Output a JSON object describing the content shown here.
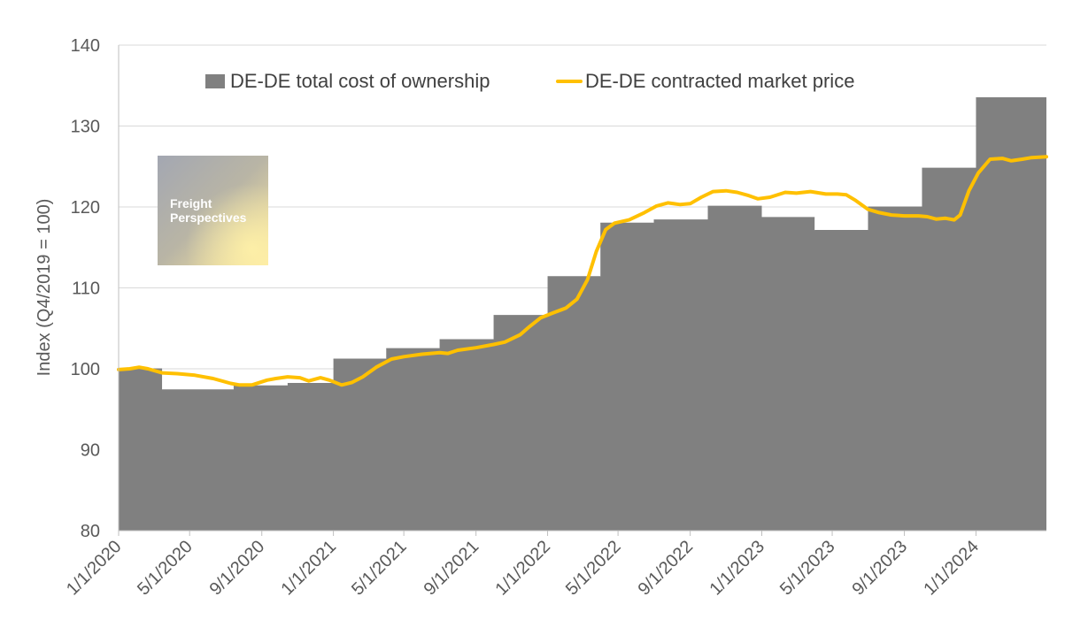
{
  "chart_data": {
    "type": "area",
    "title": "",
    "xlabel": "",
    "ylabel": "Index (Q4/2019 = 100)",
    "ylim": [
      80,
      140
    ],
    "yticks": [
      80,
      90,
      100,
      110,
      120,
      130,
      140
    ],
    "xlim": [
      "2020-01-01",
      "2024-04-30"
    ],
    "xtick_labels": [
      "1/1/2020",
      "5/1/2020",
      "9/1/2020",
      "1/1/2021",
      "5/1/2021",
      "9/1/2021",
      "1/1/2022",
      "5/1/2022",
      "9/1/2022",
      "1/1/2023",
      "5/1/2023",
      "9/1/2023",
      "1/1/2024"
    ],
    "xtick_dates": [
      "2020-01-01",
      "2020-05-01",
      "2020-09-01",
      "2021-01-01",
      "2021-05-01",
      "2021-09-01",
      "2022-01-01",
      "2022-05-01",
      "2022-09-01",
      "2023-01-01",
      "2023-05-01",
      "2023-09-01",
      "2024-01-01"
    ],
    "grid": true,
    "legend_position": "top",
    "series": [
      {
        "name": "DE-DE total cost of ownership",
        "kind": "step-area",
        "color": "#808080",
        "steps": [
          {
            "start": "2020-01-01",
            "end": "2020-03-15",
            "value": 100.0
          },
          {
            "start": "2020-03-15",
            "end": "2020-07-15",
            "value": 97.4
          },
          {
            "start": "2020-07-15",
            "end": "2020-10-15",
            "value": 97.9
          },
          {
            "start": "2020-10-15",
            "end": "2021-01-01",
            "value": 98.2
          },
          {
            "start": "2021-01-01",
            "end": "2021-04-01",
            "value": 101.2
          },
          {
            "start": "2021-04-01",
            "end": "2021-07-01",
            "value": 102.5
          },
          {
            "start": "2021-07-01",
            "end": "2021-10-01",
            "value": 103.6
          },
          {
            "start": "2021-10-01",
            "end": "2022-01-01",
            "value": 106.6
          },
          {
            "start": "2022-01-01",
            "end": "2022-04-01",
            "value": 111.4
          },
          {
            "start": "2022-04-01",
            "end": "2022-07-01",
            "value": 118.0
          },
          {
            "start": "2022-07-01",
            "end": "2022-10-01",
            "value": 118.4
          },
          {
            "start": "2022-10-01",
            "end": "2023-01-01",
            "value": 120.1
          },
          {
            "start": "2023-01-01",
            "end": "2023-04-01",
            "value": 118.7
          },
          {
            "start": "2023-04-01",
            "end": "2023-07-01",
            "value": 117.1
          },
          {
            "start": "2023-07-01",
            "end": "2023-10-01",
            "value": 120.0
          },
          {
            "start": "2023-10-01",
            "end": "2024-01-01",
            "value": 124.8
          },
          {
            "start": "2024-01-01",
            "end": "2024-04-30",
            "value": 133.5
          }
        ]
      },
      {
        "name": "DE-DE contracted market price",
        "kind": "line",
        "color": "#FFC000",
        "points": [
          [
            "2020-01-01",
            99.9
          ],
          [
            "2020-01-20",
            100.0
          ],
          [
            "2020-02-05",
            100.2
          ],
          [
            "2020-02-20",
            100.0
          ],
          [
            "2020-03-15",
            99.5
          ],
          [
            "2020-04-10",
            99.4
          ],
          [
            "2020-05-10",
            99.2
          ],
          [
            "2020-06-10",
            98.8
          ],
          [
            "2020-07-10",
            98.2
          ],
          [
            "2020-07-25",
            98.0
          ],
          [
            "2020-08-15",
            98.0
          ],
          [
            "2020-09-10",
            98.6
          ],
          [
            "2020-09-25",
            98.8
          ],
          [
            "2020-10-15",
            99.0
          ],
          [
            "2020-11-05",
            98.9
          ],
          [
            "2020-11-20",
            98.5
          ],
          [
            "2020-12-10",
            98.9
          ],
          [
            "2020-12-25",
            98.6
          ],
          [
            "2021-01-15",
            98.0
          ],
          [
            "2021-02-01",
            98.3
          ],
          [
            "2021-02-20",
            99.0
          ],
          [
            "2021-03-15",
            100.2
          ],
          [
            "2021-04-10",
            101.2
          ],
          [
            "2021-05-01",
            101.5
          ],
          [
            "2021-06-01",
            101.8
          ],
          [
            "2021-07-01",
            102.0
          ],
          [
            "2021-07-15",
            101.9
          ],
          [
            "2021-08-01",
            102.3
          ],
          [
            "2021-09-01",
            102.6
          ],
          [
            "2021-10-01",
            103.0
          ],
          [
            "2021-10-20",
            103.3
          ],
          [
            "2021-11-15",
            104.2
          ],
          [
            "2021-12-01",
            105.2
          ],
          [
            "2021-12-20",
            106.3
          ],
          [
            "2022-01-10",
            106.9
          ],
          [
            "2022-02-01",
            107.5
          ],
          [
            "2022-02-20",
            108.6
          ],
          [
            "2022-03-10",
            111.0
          ],
          [
            "2022-03-25",
            114.5
          ],
          [
            "2022-04-10",
            117.2
          ],
          [
            "2022-04-25",
            118.0
          ],
          [
            "2022-05-20",
            118.4
          ],
          [
            "2022-06-15",
            119.3
          ],
          [
            "2022-07-05",
            120.1
          ],
          [
            "2022-07-25",
            120.5
          ],
          [
            "2022-08-15",
            120.3
          ],
          [
            "2022-09-01",
            120.4
          ],
          [
            "2022-09-20",
            121.2
          ],
          [
            "2022-10-10",
            121.9
          ],
          [
            "2022-11-01",
            122.0
          ],
          [
            "2022-11-20",
            121.8
          ],
          [
            "2022-12-10",
            121.4
          ],
          [
            "2022-12-25",
            121.0
          ],
          [
            "2023-01-15",
            121.2
          ],
          [
            "2023-02-10",
            121.8
          ],
          [
            "2023-03-01",
            121.7
          ],
          [
            "2023-03-25",
            121.9
          ],
          [
            "2023-04-20",
            121.6
          ],
          [
            "2023-05-10",
            121.6
          ],
          [
            "2023-05-25",
            121.5
          ],
          [
            "2023-06-10",
            120.8
          ],
          [
            "2023-07-01",
            119.7
          ],
          [
            "2023-07-20",
            119.3
          ],
          [
            "2023-08-10",
            119.0
          ],
          [
            "2023-09-01",
            118.9
          ],
          [
            "2023-09-25",
            118.9
          ],
          [
            "2023-10-10",
            118.8
          ],
          [
            "2023-10-25",
            118.5
          ],
          [
            "2023-11-10",
            118.6
          ],
          [
            "2023-11-25",
            118.4
          ],
          [
            "2023-12-05",
            119.0
          ],
          [
            "2023-12-20",
            122.0
          ],
          [
            "2024-01-05",
            124.2
          ],
          [
            "2024-01-25",
            125.9
          ],
          [
            "2024-02-15",
            126.0
          ],
          [
            "2024-03-01",
            125.7
          ],
          [
            "2024-03-20",
            125.9
          ],
          [
            "2024-04-05",
            126.1
          ],
          [
            "2024-04-30",
            126.2
          ]
        ]
      }
    ]
  },
  "logo": {
    "line1": "Freight",
    "line2": "Perspectives"
  }
}
